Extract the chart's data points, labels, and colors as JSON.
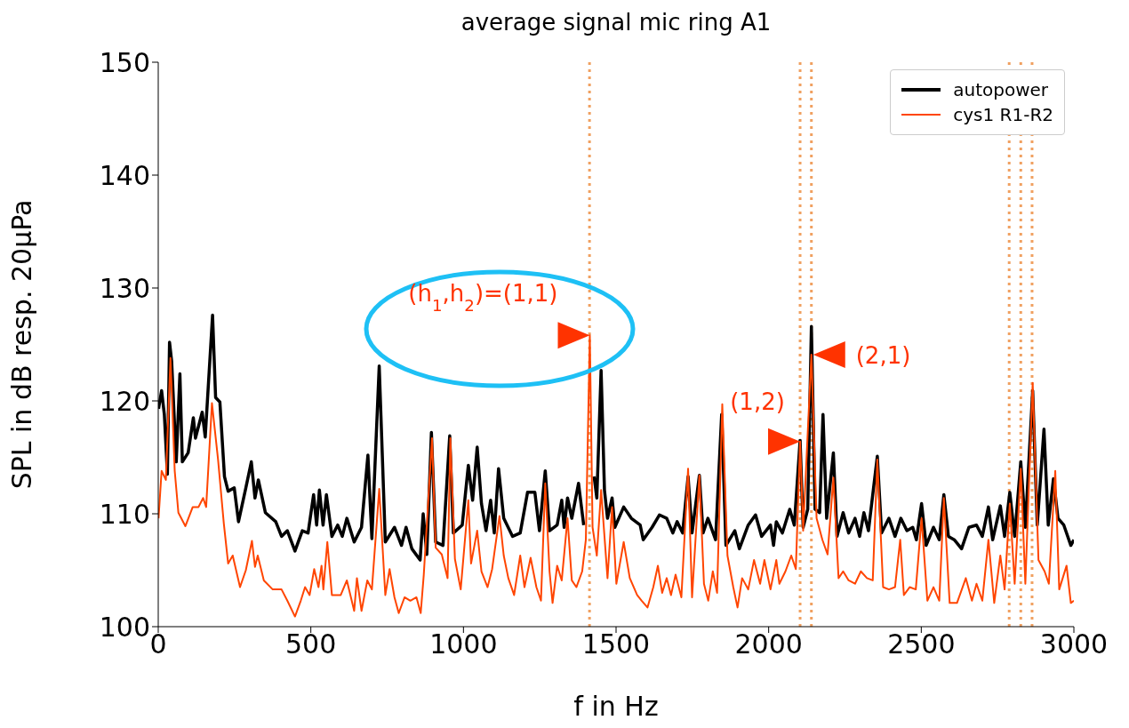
{
  "chart_data": {
    "type": "line",
    "title": "average signal mic ring A1",
    "xlabel": "f in Hz",
    "ylabel": "SPL in dB resp. 20μPa",
    "xlim": [
      0,
      3000
    ],
    "xticks": [
      0,
      500,
      1000,
      1500,
      2000,
      2500,
      3000
    ],
    "ylim": [
      100,
      150
    ],
    "yticks": [
      100,
      110,
      120,
      130,
      140,
      150
    ],
    "legend": "top right",
    "series": [
      {
        "name": "autopower",
        "color": "#000000",
        "x": [
          1,
          11,
          20,
          30,
          37,
          44,
          59,
          71,
          79,
          98,
          115,
          122,
          144,
          154,
          178,
          188,
          202,
          217,
          229,
          249,
          263,
          287,
          305,
          317,
          328,
          351,
          385,
          404,
          423,
          448,
          472,
          491,
          509,
          519,
          528,
          540,
          551,
          569,
          588,
          603,
          618,
          642,
          666,
          687,
          700,
          724,
          744,
          774,
          797,
          812,
          831,
          858,
          868,
          880,
          895,
          909,
          933,
          955,
          967,
          996,
          1016,
          1030,
          1045,
          1059,
          1074,
          1089,
          1101,
          1115,
          1132,
          1161,
          1186,
          1210,
          1234,
          1249,
          1268,
          1282,
          1307,
          1322,
          1330,
          1341,
          1355,
          1377,
          1394,
          1414,
          1428,
          1437,
          1451,
          1462,
          1472,
          1487,
          1496,
          1525,
          1550,
          1579,
          1589,
          1618,
          1642,
          1666,
          1686,
          1700,
          1718,
          1736,
          1749,
          1773,
          1785,
          1801,
          1826,
          1846,
          1860,
          1889,
          1904,
          1933,
          1957,
          1977,
          2006,
          2016,
          2025,
          2045,
          2069,
          2084,
          2103,
          2113,
          2128,
          2140,
          2152,
          2167,
          2178,
          2190,
          2212,
          2224,
          2244,
          2262,
          2283,
          2298,
          2312,
          2327,
          2356,
          2370,
          2394,
          2414,
          2433,
          2453,
          2472,
          2484,
          2501,
          2516,
          2540,
          2559,
          2574,
          2589,
          2608,
          2632,
          2656,
          2681,
          2700,
          2720,
          2734,
          2759,
          2773,
          2790,
          2806,
          2826,
          2841,
          2865,
          2880,
          2902,
          2916,
          2933,
          2948,
          2967,
          2990,
          3000
        ],
        "values": [
          119.3,
          120.9,
          118.8,
          113.5,
          125.2,
          123.5,
          114.6,
          122.4,
          114.6,
          115.4,
          118.5,
          116.7,
          119,
          116.8,
          127.6,
          120.3,
          119.9,
          113.3,
          112,
          112.3,
          109.3,
          112.3,
          114.6,
          111.4,
          113,
          110.1,
          109.3,
          108,
          108.5,
          106.7,
          108.5,
          108.3,
          111.7,
          109,
          112.1,
          109,
          111.7,
          108,
          109,
          108,
          109.6,
          107.5,
          108.8,
          115.2,
          107.8,
          123.1,
          107.5,
          108.8,
          107.2,
          108.8,
          106.9,
          105.9,
          110,
          106.4,
          117.2,
          107.5,
          107.2,
          116.9,
          108.3,
          109,
          114.3,
          111.2,
          115.9,
          110.9,
          108.5,
          111.2,
          108.3,
          114,
          109.6,
          108,
          108.3,
          111.9,
          111.9,
          108.5,
          113.8,
          108.5,
          109,
          111.2,
          108.8,
          111.4,
          109.6,
          112.7,
          109,
          null,
          113.3,
          111.4,
          122.7,
          112.1,
          109.6,
          111.4,
          108.8,
          110.6,
          109.6,
          109,
          107.7,
          108.8,
          109.9,
          109.6,
          108.3,
          109.3,
          108.3,
          113.3,
          108.3,
          113.4,
          108.3,
          109.6,
          107.7,
          118.8,
          107.2,
          108.5,
          106.9,
          109,
          109.9,
          108,
          109,
          107.2,
          109.3,
          108.3,
          110.4,
          109,
          116.5,
          108.8,
          110.4,
          126.6,
          110.4,
          110.1,
          118.8,
          109.6,
          115.4,
          108,
          110.1,
          108.3,
          109.6,
          108,
          110.1,
          108.5,
          115.1,
          108.3,
          109.6,
          108,
          109.6,
          108.5,
          108.8,
          107.7,
          110.9,
          107.2,
          108.8,
          107.7,
          111.7,
          108,
          107.7,
          106.9,
          108.8,
          109,
          108,
          110.6,
          107.7,
          110.7,
          108,
          111.9,
          108,
          114.6,
          108.8,
          120.9,
          109,
          117.5,
          109,
          113.1,
          109.6,
          109,
          107.2,
          107.7
        ]
      },
      {
        "name": "cys1 R1-R2",
        "color": "#ff4500",
        "x": [
          1,
          11,
          25,
          40,
          54,
          66,
          89,
          113,
          132,
          147,
          157,
          176,
          196,
          215,
          229,
          244,
          268,
          287,
          307,
          317,
          326,
          346,
          375,
          404,
          423,
          448,
          467,
          481,
          496,
          511,
          525,
          535,
          541,
          554,
          569,
          598,
          618,
          642,
          651,
          666,
          685,
          700,
          724,
          744,
          758,
          774,
          788,
          807,
          826,
          846,
          860,
          870,
          897,
          909,
          929,
          948,
          957,
          972,
          991,
          1016,
          1025,
          1045,
          1059,
          1079,
          1094,
          1118,
          1132,
          1147,
          1166,
          1186,
          1200,
          1220,
          1239,
          1254,
          1268,
          1282,
          1292,
          1307,
          1322,
          1341,
          1355,
          1370,
          1389,
          1401,
          1414,
          1423,
          1437,
          1451,
          1472,
          1487,
          1501,
          1525,
          1545,
          1569,
          1584,
          1603,
          1622,
          1637,
          1651,
          1666,
          1680,
          1695,
          1714,
          1736,
          1749,
          1773,
          1788,
          1802,
          1817,
          1831,
          1848,
          1865,
          1884,
          1898,
          1913,
          1933,
          1952,
          1972,
          1986,
          2006,
          2025,
          2035,
          2055,
          2074,
          2089,
          2103,
          2113,
          2140,
          2157,
          2176,
          2193,
          2212,
          2229,
          2244,
          2262,
          2283,
          2302,
          2322,
          2341,
          2356,
          2375,
          2394,
          2414,
          2431,
          2443,
          2462,
          2482,
          2501,
          2520,
          2540,
          2559,
          2574,
          2593,
          2617,
          2646,
          2666,
          2681,
          2700,
          2720,
          2739,
          2759,
          2773,
          2790,
          2806,
          2826,
          2841,
          2865,
          2884,
          2904,
          2918,
          2939,
          2952,
          2976,
          2990,
          3000
        ],
        "values": [
          109.6,
          113.8,
          113,
          123.8,
          113.8,
          110.1,
          108.9,
          110.6,
          110.6,
          111.4,
          110.6,
          119.8,
          114.8,
          109.1,
          105.6,
          106.3,
          103.5,
          105,
          107.6,
          105.3,
          106.3,
          104.1,
          103.3,
          103.3,
          102.3,
          100.9,
          102.3,
          103.5,
          102.8,
          105.1,
          103.5,
          105.4,
          103.3,
          107.5,
          102.8,
          102.8,
          104.1,
          101.4,
          104.3,
          101.4,
          104.1,
          103.3,
          112.2,
          102.8,
          105.1,
          102.6,
          101.2,
          102.6,
          102.3,
          102.6,
          101.2,
          104.6,
          116.7,
          107,
          106.4,
          104.3,
          116.7,
          106,
          103.3,
          111.2,
          105.6,
          108.5,
          104.9,
          103.5,
          105.1,
          109.8,
          106.3,
          104.3,
          102.8,
          106.3,
          103.5,
          106.1,
          103.5,
          102.3,
          112.7,
          104.9,
          102.1,
          105.4,
          104.1,
          109.6,
          104.1,
          103.5,
          104.9,
          107.7,
          125.8,
          108.8,
          106.3,
          112.1,
          104.3,
          110.6,
          103.8,
          107.5,
          104.3,
          102.8,
          102.3,
          101.7,
          103.5,
          105.4,
          103,
          104.3,
          102.8,
          104.6,
          102.6,
          114,
          102.6,
          113.4,
          103.8,
          102.3,
          104.9,
          103,
          119.7,
          106.3,
          103.5,
          101.7,
          104.3,
          103.3,
          105.9,
          103.8,
          105.9,
          103.3,
          105.9,
          103.8,
          104.9,
          106.3,
          105.1,
          116.4,
          108.5,
          124.1,
          109.6,
          107.7,
          106.4,
          113.2,
          104.3,
          104.9,
          104.1,
          103.8,
          104.9,
          104.3,
          104.1,
          114.8,
          103.5,
          103.3,
          103.5,
          107.7,
          102.8,
          103.5,
          103.3,
          109.6,
          102.3,
          103.5,
          102.3,
          111.4,
          102.1,
          102.1,
          104.3,
          102.3,
          103.8,
          102.3,
          107.7,
          102.1,
          106.3,
          103.3,
          110.9,
          103.8,
          114,
          103.8,
          121.6,
          105.9,
          104.9,
          103.8,
          113.8,
          103.3,
          105.4,
          102.1,
          102.3
        ]
      }
    ],
    "ref_lines": [
      {
        "axis": "x",
        "value": 1413,
        "color": "#f0a060",
        "line_style": "dotted"
      },
      {
        "axis": "x",
        "value": 2103,
        "color": "#f0a060",
        "line_style": "dotted"
      },
      {
        "axis": "x",
        "value": 2140,
        "color": "#f0a060",
        "line_style": "dotted"
      },
      {
        "axis": "x",
        "value": 2788,
        "color": "#f0a060",
        "line_style": "dotted"
      },
      {
        "axis": "x",
        "value": 2826,
        "color": "#f0a060",
        "line_style": "dotted"
      },
      {
        "axis": "x",
        "value": 2863,
        "color": "#f0a060",
        "line_style": "dotted"
      }
    ],
    "annotations": [
      {
        "text": "(h$_{1}$,h$_{2}$)=(1,1)",
        "x": 1414,
        "y": 125.8
      },
      {
        "text": "(1,2)",
        "x": 2103,
        "y": 116.4
      },
      {
        "text": "(2,1)",
        "x": 2140,
        "y": 124.1
      }
    ]
  }
}
